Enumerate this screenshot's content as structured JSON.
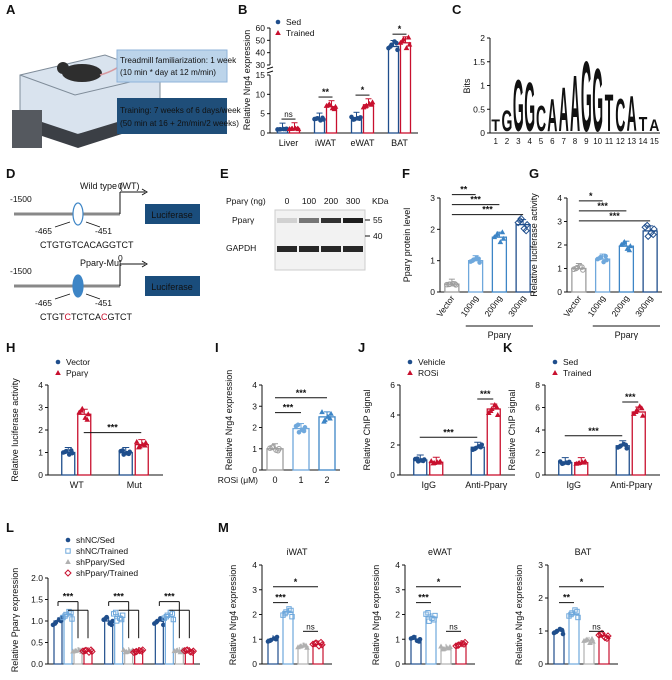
{
  "colors": {
    "blue": "#1f4e8c",
    "red": "#c8102e",
    "lightblue": "#6fa8dc",
    "midblue": "#3d85c6",
    "grey": "#9e9e9e",
    "box1": "#bcd4ea",
    "box2": "#1f4e79",
    "lucif": "#1a4d7c"
  },
  "panelA": {
    "label": "A",
    "box1_line1": "Treadmill familiarization: 1 week",
    "box1_line2": "(10 min * day at 12 m/min)",
    "box2_line1": "Training: 7 weeks of 6 days/week",
    "box2_line2": "(50 min at 16 + 2m/min/2 weeks)"
  },
  "panelD": {
    "label": "D",
    "wt_title": "Wild type (WT)",
    "mut_title": "Ppary-Mut",
    "pos_start": "-1500",
    "pos_zero": "0",
    "pos_left": "-465",
    "pos_right": "-451",
    "luc": "Luciferase",
    "wt_seq": "CTGTGTCACAGGTCT",
    "mut_seq_a": "CTGT",
    "mut_seq_b": "C",
    "mut_seq_c": "TCTCA",
    "mut_seq_d": "C",
    "mut_seq_e": "GTCT"
  },
  "panelE": {
    "label": "E",
    "dose_label": "Pparγ (ng)",
    "doses": [
      "0",
      "100",
      "200",
      "300"
    ],
    "kda": "KDa",
    "band1": "Pparγ",
    "band2": "GAPDH",
    "m55": "55",
    "m40": "40"
  },
  "panelC": {
    "label": "C",
    "ylabel": "Bits",
    "yticks": [
      "0",
      "0.5",
      "1",
      "1.5",
      "2"
    ],
    "positions": [
      "1",
      "2",
      "3",
      "4",
      "5",
      "6",
      "7",
      "8",
      "9",
      "10",
      "11",
      "12",
      "13",
      "14",
      "15"
    ]
  },
  "chart_data": [
    {
      "panel": "B",
      "type": "bar",
      "ylabel": "Relative Nrg4 expression",
      "categories": [
        "Liver",
        "iWAT",
        "eWAT",
        "BAT"
      ],
      "series": [
        {
          "name": "Sed",
          "values": [
            1.0,
            3.6,
            3.8,
            45
          ]
        },
        {
          "name": "Trained",
          "values": [
            1.1,
            6.8,
            7.3,
            48
          ]
        }
      ],
      "yticks_low": [
        "0",
        "5",
        "10",
        "15"
      ],
      "yticks_high": [
        "30",
        "40",
        "50",
        "60"
      ],
      "sig": [
        "ns",
        "**",
        "*",
        "*"
      ]
    },
    {
      "panel": "F",
      "type": "bar",
      "ylabel": "Pparγ protein level",
      "categories": [
        "Vector",
        "100ng",
        "200ng",
        "300ng"
      ],
      "values": [
        0.25,
        1.0,
        1.75,
        2.15
      ],
      "ylim": [
        0,
        3
      ],
      "yticks": [
        "0",
        "1",
        "2",
        "3"
      ],
      "group_label": "Pparγ",
      "sig": [
        "**",
        "***",
        "***"
      ]
    },
    {
      "panel": "G",
      "type": "bar",
      "ylabel": "Relative luciferase activity",
      "categories": [
        "Vector",
        "100ng",
        "200ng",
        "300ng"
      ],
      "values": [
        1.0,
        1.4,
        1.95,
        2.6
      ],
      "ylim": [
        0,
        4
      ],
      "yticks": [
        "0",
        "1",
        "2",
        "3",
        "4"
      ],
      "group_label": "Pparγ",
      "sig": [
        "*",
        "***",
        "***"
      ]
    },
    {
      "panel": "H",
      "type": "bar",
      "ylabel": "Relative luciferase activity",
      "categories": [
        "WT",
        "Mut"
      ],
      "series": [
        {
          "name": "Vector",
          "values": [
            1.0,
            1.0
          ]
        },
        {
          "name": "Pparγ",
          "values": [
            2.7,
            1.35
          ]
        }
      ],
      "ylim": [
        0,
        4
      ],
      "yticks": [
        "0",
        "1",
        "2",
        "3",
        "4"
      ],
      "sig": [
        "***"
      ]
    },
    {
      "panel": "I",
      "type": "bar",
      "ylabel": "Relative Nrg4 expression",
      "xlabel": "ROSi (μM)",
      "categories": [
        "0",
        "1",
        "2"
      ],
      "values": [
        1.0,
        1.95,
        2.5
      ],
      "ylim": [
        0,
        4
      ],
      "yticks": [
        "0",
        "1",
        "2",
        "3",
        "4"
      ],
      "sig": [
        "***",
        "***"
      ]
    },
    {
      "panel": "J",
      "type": "bar",
      "ylabel": "Relative ChIP signal",
      "categories": [
        "IgG",
        "Anti-Pparγ"
      ],
      "series": [
        {
          "name": "Vehicle",
          "values": [
            1.0,
            1.85
          ]
        },
        {
          "name": "ROSi",
          "values": [
            0.85,
            4.4
          ]
        }
      ],
      "ylim": [
        0,
        6
      ],
      "yticks": [
        "0",
        "2",
        "4",
        "6"
      ],
      "sig": [
        "***",
        "***"
      ]
    },
    {
      "panel": "K",
      "type": "bar",
      "ylabel": "Relative ChIP signal",
      "categories": [
        "IgG",
        "Anti-Pparγ"
      ],
      "series": [
        {
          "name": "Sed",
          "values": [
            1.1,
            2.6
          ]
        },
        {
          "name": "Trained",
          "values": [
            1.1,
            5.6
          ]
        }
      ],
      "ylim": [
        0,
        8
      ],
      "yticks": [
        "0",
        "2",
        "4",
        "6",
        "8"
      ],
      "sig": [
        "***",
        "***"
      ]
    },
    {
      "panel": "L",
      "type": "bar",
      "ylabel": "Relative Pparγ expression",
      "series": [
        {
          "name": "shNC/Sed",
          "values": [
            1.0,
            1.0,
            1.0
          ]
        },
        {
          "name": "shNC/Trained",
          "values": [
            1.15,
            1.1,
            1.1
          ]
        },
        {
          "name": "shPparγ/Sed",
          "values": [
            0.3,
            0.3,
            0.3
          ]
        },
        {
          "name": "shPparγ/Trained",
          "values": [
            0.3,
            0.3,
            0.3
          ]
        }
      ],
      "ylim": [
        0,
        2
      ],
      "yticks": [
        "0.0",
        "0.5",
        "1.0",
        "1.5",
        "2.0"
      ],
      "sig": [
        "***",
        "***",
        "***"
      ]
    },
    {
      "panel": "M",
      "type": "bar",
      "ylabel": "Relative Nrg4 expression",
      "subpanels": [
        {
          "title": "iWAT",
          "values": [
            1.0,
            2.1,
            0.7,
            0.8
          ],
          "ylim": [
            0,
            4
          ],
          "yticks": [
            "0",
            "1",
            "2",
            "3",
            "4"
          ],
          "sig": [
            "***",
            "*",
            "ns"
          ]
        },
        {
          "title": "eWAT",
          "values": [
            1.0,
            1.9,
            0.65,
            0.8
          ],
          "ylim": [
            0,
            4
          ],
          "yticks": [
            "0",
            "1",
            "2",
            "3",
            "4"
          ],
          "sig": [
            "***",
            "*",
            "ns"
          ]
        },
        {
          "title": "BAT",
          "values": [
            1.0,
            1.5,
            0.7,
            0.85
          ],
          "ylim": [
            0,
            3
          ],
          "yticks": [
            "0",
            "1",
            "2",
            "3"
          ],
          "sig": [
            "**",
            "*",
            "ns"
          ]
        }
      ]
    }
  ]
}
